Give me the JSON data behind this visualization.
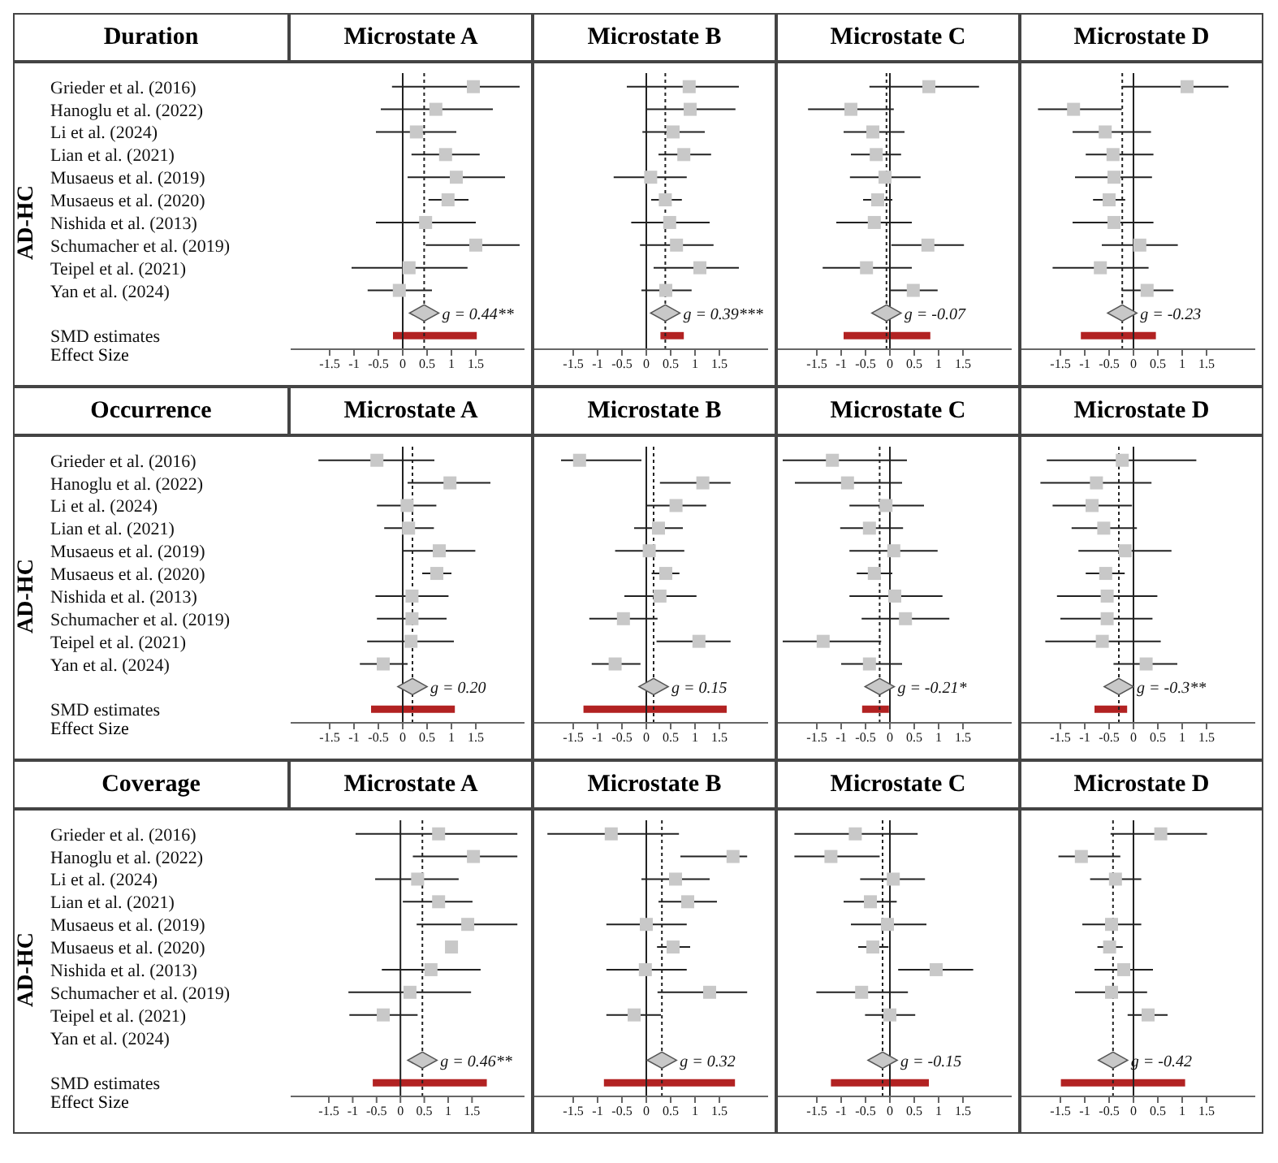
{
  "chart_data": [
    {
      "type": "scatter",
      "title": "Microstate A",
      "ylabel": "AD-HC",
      "xlabel": "Effect Size",
      "annotations": [
        "Duration",
        {
          "text": "g = 0.44**",
          "x": 0.44
        }
      ],
      "orientation": "horizontal",
      "categories": [
        "Grieder et al. (2016)",
        "Hanoglu et al. (2022)",
        "Li et al. (2024)",
        "Lian et al. (2021)",
        "Musaeus et al. (2019)",
        "Musaeus et al. (2020)",
        "Nishida et al. (2013)",
        "Schumacher et al. (2019)",
        "Teipel et al. (2021)",
        "Yan et al. (2024)",
        null,
        "SMD estimates"
      ],
      "xlim": [
        -2.3,
        2.5
      ],
      "xticks": [
        -1.5,
        -1,
        -0.5,
        0,
        0.5,
        1,
        1.5
      ],
      "series": [
        {
          "marker": "square",
          "color": "#c8c8c8",
          "values": [
            1.45,
            0.68,
            0.28,
            0.88,
            1.1,
            0.93,
            0.47,
            1.5,
            0.13,
            -0.07,
            null,
            null
          ],
          "errors": [
            [
              -0.22,
              2.4
            ],
            [
              -0.45,
              1.85
            ],
            [
              -0.55,
              1.1
            ],
            [
              0.18,
              1.58
            ],
            [
              0.1,
              2.1
            ],
            [
              0.53,
              1.35
            ],
            [
              -0.55,
              1.5
            ],
            [
              0.47,
              2.4
            ],
            [
              -1.05,
              1.33
            ],
            [
              -0.72,
              0.6
            ],
            null,
            null
          ]
        },
        {
          "type": "scatter",
          "marker": "diamond",
          "color": "#c8c8c8",
          "values": [
            null,
            null,
            null,
            null,
            null,
            null,
            null,
            null,
            null,
            null,
            0.44,
            null
          ]
        },
        {
          "type": "bar",
          "color": "#b22222",
          "values": [
            null,
            null,
            null,
            null,
            null,
            null,
            null,
            null,
            null,
            null,
            null,
            1.72
          ],
          "base": [
            null,
            null,
            null,
            null,
            null,
            null,
            null,
            null,
            null,
            null,
            null,
            -0.2
          ]
        }
      ],
      "ref_lines": [
        {
          "axis": "x",
          "value": 0,
          "line_style": "solid"
        },
        {
          "axis": "x",
          "value": 0.44,
          "line_style": "dotted"
        }
      ]
    },
    {
      "type": "scatter",
      "title": "Microstate B",
      "tick_labels": "x",
      "annotations": [
        {
          "text": "g = 0.39***",
          "x": 0.39
        }
      ],
      "orientation": "horizontal",
      "categories": [
        null,
        null,
        null,
        null,
        null,
        null,
        null,
        null,
        null,
        null,
        null,
        null
      ],
      "xlim": [
        -2.3,
        2.5
      ],
      "xticks": [
        -1.5,
        -1,
        -0.5,
        0,
        0.5,
        1,
        1.5
      ],
      "series": [
        {
          "marker": "square",
          "color": "#c8c8c8",
          "values": [
            0.88,
            0.9,
            0.55,
            0.77,
            0.09,
            0.39,
            0.48,
            0.62,
            1.1,
            0.4,
            null,
            null
          ],
          "errors": [
            [
              -0.4,
              1.9
            ],
            [
              0,
              1.83
            ],
            [
              -0.08,
              1.2
            ],
            [
              0.25,
              1.33
            ],
            [
              -0.67,
              0.83
            ],
            [
              0.1,
              0.73
            ],
            [
              -0.31,
              1.3
            ],
            [
              -0.13,
              1.38
            ],
            [
              0.15,
              1.9
            ],
            [
              -0.1,
              0.93
            ],
            null,
            null
          ]
        },
        {
          "type": "scatter",
          "marker": "diamond",
          "color": "#c8c8c8",
          "values": [
            null,
            null,
            null,
            null,
            null,
            null,
            null,
            null,
            null,
            null,
            0.39,
            null
          ]
        },
        {
          "type": "bar",
          "color": "#b22222",
          "values": [
            null,
            null,
            null,
            null,
            null,
            null,
            null,
            null,
            null,
            null,
            null,
            0.48
          ],
          "base": [
            null,
            null,
            null,
            null,
            null,
            null,
            null,
            null,
            null,
            null,
            null,
            0.29
          ]
        }
      ],
      "ref_lines": [
        {
          "axis": "x",
          "value": 0,
          "line_style": "solid"
        },
        {
          "axis": "x",
          "value": 0.39,
          "line_style": "dotted"
        }
      ]
    },
    {
      "type": "scatter",
      "title": "Microstate C",
      "tick_labels": "x",
      "annotations": [
        {
          "text": "g = -0.07",
          "x": -0.07
        }
      ],
      "orientation": "horizontal",
      "categories": [
        null,
        null,
        null,
        null,
        null,
        null,
        null,
        null,
        null,
        null,
        null,
        null
      ],
      "xlim": [
        -2.3,
        2.5
      ],
      "xticks": [
        -1.5,
        -1,
        -0.5,
        0,
        0.5,
        1,
        1.5
      ],
      "series": [
        {
          "marker": "square",
          "color": "#c8c8c8",
          "values": [
            0.8,
            -0.8,
            -0.35,
            -0.28,
            -0.1,
            -0.25,
            -0.32,
            0.78,
            -0.48,
            0.48,
            null,
            null
          ],
          "errors": [
            [
              -0.42,
              1.83
            ],
            [
              -1.68,
              0.08
            ],
            [
              -0.95,
              0.3
            ],
            [
              -0.8,
              0.23
            ],
            [
              -0.82,
              0.63
            ],
            [
              -0.55,
              0.05
            ],
            [
              -1.1,
              0.45
            ],
            [
              0.03,
              1.52
            ],
            [
              -1.38,
              0.45
            ],
            [
              0,
              0.98
            ],
            null,
            null
          ]
        },
        {
          "type": "scatter",
          "marker": "diamond",
          "color": "#c8c8c8",
          "values": [
            null,
            null,
            null,
            null,
            null,
            null,
            null,
            null,
            null,
            null,
            -0.07,
            null
          ]
        },
        {
          "type": "bar",
          "color": "#b22222",
          "values": [
            null,
            null,
            null,
            null,
            null,
            null,
            null,
            null,
            null,
            null,
            null,
            1.78
          ],
          "base": [
            null,
            null,
            null,
            null,
            null,
            null,
            null,
            null,
            null,
            null,
            null,
            -0.95
          ]
        }
      ],
      "ref_lines": [
        {
          "axis": "x",
          "value": 0,
          "line_style": "solid"
        },
        {
          "axis": "x",
          "value": -0.07,
          "line_style": "dotted"
        }
      ]
    },
    {
      "type": "scatter",
      "title": "Microstate D",
      "tick_labels": "x",
      "annotations": [
        {
          "text": "g = -0.23",
          "x": -0.23
        }
      ],
      "orientation": "horizontal",
      "categories": [
        null,
        null,
        null,
        null,
        null,
        null,
        null,
        null,
        null,
        null,
        null,
        null
      ],
      "xlim": [
        -2.3,
        2.5
      ],
      "xticks": [
        -1.5,
        -1,
        -0.5,
        0,
        0.5,
        1,
        1.5
      ],
      "series": [
        {
          "marker": "square",
          "color": "#c8c8c8",
          "values": [
            1.1,
            -1.23,
            -0.58,
            -0.42,
            -0.4,
            -0.5,
            -0.4,
            0.13,
            -0.68,
            0.28,
            null,
            null
          ],
          "errors": [
            [
              -0.24,
              1.95
            ],
            [
              -1.96,
              -0.24
            ],
            [
              -1.25,
              0.36
            ],
            [
              -0.98,
              0.41
            ],
            [
              -1.2,
              0.38
            ],
            [
              -0.83,
              -0.17
            ],
            [
              -1.25,
              0.41
            ],
            [
              -0.65,
              0.91
            ],
            [
              -1.66,
              0.31
            ],
            [
              -0.24,
              0.82
            ],
            null,
            null
          ]
        },
        {
          "type": "scatter",
          "marker": "diamond",
          "color": "#c8c8c8",
          "values": [
            null,
            null,
            null,
            null,
            null,
            null,
            null,
            null,
            null,
            null,
            -0.23,
            null
          ]
        },
        {
          "type": "bar",
          "color": "#b22222",
          "values": [
            null,
            null,
            null,
            null,
            null,
            null,
            null,
            null,
            null,
            null,
            null,
            1.54
          ],
          "base": [
            null,
            null,
            null,
            null,
            null,
            null,
            null,
            null,
            null,
            null,
            null,
            -1.08
          ]
        }
      ],
      "ref_lines": [
        {
          "axis": "x",
          "value": 0,
          "line_style": "solid"
        },
        {
          "axis": "x",
          "value": -0.23,
          "line_style": "dotted"
        }
      ]
    },
    {
      "type": "scatter",
      "title": "Microstate A",
      "ylabel": "AD-HC",
      "xlabel": "Effect Size",
      "annotations": [
        "Occurrence",
        {
          "text": "g = 0.20",
          "x": 0.2
        }
      ],
      "orientation": "horizontal",
      "categories": [
        "Grieder et al. (2016)",
        "Hanoglu et al. (2022)",
        "Li et al. (2024)",
        "Lian et al. (2021)",
        "Musaeus et al. (2019)",
        "Musaeus et al. (2020)",
        "Nishida et al. (2013)",
        "Schumacher et al. (2019)",
        "Teipel et al. (2021)",
        "Yan et al. (2024)",
        null,
        "SMD estimates"
      ],
      "xlim": [
        -2.3,
        2.5
      ],
      "xticks": [
        -1.5,
        -1,
        -0.5,
        0,
        0.5,
        1,
        1.5
      ],
      "series": [
        {
          "marker": "square",
          "color": "#c8c8c8",
          "values": [
            -0.53,
            0.97,
            0.09,
            0.12,
            0.75,
            0.7,
            0.19,
            0.19,
            0.17,
            -0.4,
            null,
            null
          ],
          "errors": [
            [
              -1.73,
              0.65
            ],
            [
              0.1,
              1.8
            ],
            [
              -0.53,
              0.69
            ],
            [
              -0.38,
              0.64
            ],
            [
              0,
              1.49
            ],
            [
              0.4,
              1.0
            ],
            [
              -0.56,
              0.94
            ],
            [
              -0.53,
              0.9
            ],
            [
              -0.73,
              1.05
            ],
            [
              -0.88,
              0.1
            ],
            null,
            null
          ]
        },
        {
          "type": "scatter",
          "marker": "diamond",
          "color": "#c8c8c8",
          "values": [
            null,
            null,
            null,
            null,
            null,
            null,
            null,
            null,
            null,
            null,
            0.2,
            null
          ]
        },
        {
          "type": "bar",
          "color": "#b22222",
          "values": [
            null,
            null,
            null,
            null,
            null,
            null,
            null,
            null,
            null,
            null,
            null,
            1.72
          ],
          "base": [
            null,
            null,
            null,
            null,
            null,
            null,
            null,
            null,
            null,
            null,
            null,
            -0.65
          ]
        }
      ],
      "ref_lines": [
        {
          "axis": "x",
          "value": 0,
          "line_style": "solid"
        },
        {
          "axis": "x",
          "value": 0.2,
          "line_style": "dotted"
        }
      ]
    },
    {
      "type": "scatter",
      "title": "Microstate B",
      "tick_labels": "x",
      "annotations": [
        {
          "text": "g = 0.15",
          "x": 0.15
        }
      ],
      "orientation": "horizontal",
      "categories": [
        null,
        null,
        null,
        null,
        null,
        null,
        null,
        null,
        null,
        null,
        null,
        null
      ],
      "xlim": [
        -2.3,
        2.5
      ],
      "xticks": [
        -1.5,
        -1,
        -0.5,
        0,
        0.5,
        1,
        1.5
      ],
      "series": [
        {
          "marker": "square",
          "color": "#c8c8c8",
          "values": [
            -1.37,
            1.16,
            0.61,
            0.25,
            0.06,
            0.4,
            0.28,
            -0.47,
            1.08,
            -0.64,
            null,
            null
          ],
          "errors": [
            [
              -1.75,
              -0.1
            ],
            [
              0.28,
              1.73
            ],
            [
              0,
              1.23
            ],
            [
              -0.25,
              0.75
            ],
            [
              -0.64,
              0.78
            ],
            [
              0.11,
              0.68
            ],
            [
              -0.45,
              1.03
            ],
            [
              -1.17,
              0.23
            ],
            [
              0.21,
              1.73
            ],
            [
              -1.12,
              -0.12
            ],
            null,
            null
          ]
        },
        {
          "type": "scatter",
          "marker": "diamond",
          "color": "#c8c8c8",
          "values": [
            null,
            null,
            null,
            null,
            null,
            null,
            null,
            null,
            null,
            null,
            0.15,
            null
          ]
        },
        {
          "type": "bar",
          "color": "#b22222",
          "values": [
            null,
            null,
            null,
            null,
            null,
            null,
            null,
            null,
            null,
            null,
            null,
            2.94
          ],
          "base": [
            null,
            null,
            null,
            null,
            null,
            null,
            null,
            null,
            null,
            null,
            null,
            -1.29
          ]
        }
      ],
      "ref_lines": [
        {
          "axis": "x",
          "value": 0,
          "line_style": "solid"
        },
        {
          "axis": "x",
          "value": 0.15,
          "line_style": "dotted"
        }
      ]
    },
    {
      "type": "scatter",
      "title": "Microstate C",
      "tick_labels": "x",
      "annotations": [
        {
          "text": "g = -0.21*",
          "x": -0.21
        }
      ],
      "orientation": "horizontal",
      "categories": [
        null,
        null,
        null,
        null,
        null,
        null,
        null,
        null,
        null,
        null,
        null,
        null
      ],
      "xlim": [
        -2.3,
        2.5
      ],
      "xticks": [
        -1.5,
        -1,
        -0.5,
        0,
        0.5,
        1,
        1.5
      ],
      "series": [
        {
          "marker": "square",
          "color": "#c8c8c8",
          "values": [
            -1.18,
            -0.87,
            -0.08,
            -0.42,
            0.08,
            -0.32,
            0.1,
            0.32,
            -1.37,
            -0.42,
            null,
            null
          ],
          "errors": [
            [
              -2.2,
              0.35
            ],
            [
              -1.95,
              0.25
            ],
            [
              -0.83,
              0.7
            ],
            [
              -1.02,
              0.27
            ],
            [
              -0.83,
              0.98
            ],
            [
              -0.68,
              0.05
            ],
            [
              -0.83,
              1.08
            ],
            [
              -0.58,
              1.22
            ],
            [
              -2.2,
              -0.18
            ],
            [
              -1.0,
              0.25
            ],
            null,
            null
          ]
        },
        {
          "type": "scatter",
          "marker": "diamond",
          "color": "#c8c8c8",
          "values": [
            null,
            null,
            null,
            null,
            null,
            null,
            null,
            null,
            null,
            null,
            -0.21,
            null
          ]
        },
        {
          "type": "bar",
          "color": "#b22222",
          "values": [
            null,
            null,
            null,
            null,
            null,
            null,
            null,
            null,
            null,
            null,
            null,
            0.55
          ],
          "base": [
            null,
            null,
            null,
            null,
            null,
            null,
            null,
            null,
            null,
            null,
            null,
            -0.57
          ]
        }
      ],
      "ref_lines": [
        {
          "axis": "x",
          "value": 0,
          "line_style": "solid"
        },
        {
          "axis": "x",
          "value": -0.21,
          "line_style": "dotted"
        }
      ]
    },
    {
      "type": "scatter",
      "title": "Microstate D",
      "tick_labels": "x",
      "annotations": [
        {
          "text": "g = -0.3**",
          "x": -0.3
        }
      ],
      "orientation": "horizontal",
      "categories": [
        null,
        null,
        null,
        null,
        null,
        null,
        null,
        null,
        null,
        null,
        null,
        null
      ],
      "xlim": [
        -2.3,
        2.5
      ],
      "xticks": [
        -1.5,
        -1,
        -0.5,
        0,
        0.5,
        1,
        1.5
      ],
      "series": [
        {
          "marker": "square",
          "color": "#c8c8c8",
          "values": [
            -0.23,
            -0.76,
            -0.85,
            -0.61,
            -0.17,
            -0.57,
            -0.54,
            -0.54,
            -0.64,
            0.26,
            null,
            null
          ],
          "errors": [
            [
              -1.78,
              1.29
            ],
            [
              -1.91,
              0.37
            ],
            [
              -1.66,
              -0.03
            ],
            [
              -1.27,
              0.07
            ],
            [
              -1.13,
              0.78
            ],
            [
              -0.98,
              -0.18
            ],
            [
              -1.57,
              0.49
            ],
            [
              -1.5,
              0.39
            ],
            [
              -1.81,
              0.56
            ],
            [
              -0.41,
              0.9
            ],
            null,
            null
          ]
        },
        {
          "type": "scatter",
          "marker": "diamond",
          "color": "#c8c8c8",
          "values": [
            null,
            null,
            null,
            null,
            null,
            null,
            null,
            null,
            null,
            null,
            -0.3,
            null
          ]
        },
        {
          "type": "bar",
          "color": "#b22222",
          "values": [
            null,
            null,
            null,
            null,
            null,
            null,
            null,
            null,
            null,
            null,
            null,
            0.67
          ],
          "base": [
            null,
            null,
            null,
            null,
            null,
            null,
            null,
            null,
            null,
            null,
            null,
            -0.8
          ]
        }
      ],
      "ref_lines": [
        {
          "axis": "x",
          "value": 0,
          "line_style": "solid"
        },
        {
          "axis": "x",
          "value": -0.3,
          "line_style": "dotted"
        }
      ]
    },
    {
      "type": "scatter",
      "title": "Microstate A",
      "ylabel": "AD-HC",
      "xlabel": "Effect Size",
      "annotations": [
        "Coverage",
        {
          "text": "g = 0.46**",
          "x": 0.46
        }
      ],
      "orientation": "horizontal",
      "categories": [
        "Grieder et al. (2016)",
        "Hanoglu et al. (2022)",
        "Li et al. (2024)",
        "Lian et al. (2021)",
        "Musaeus et al. (2019)",
        "Musaeus et al. (2020)",
        "Nishida et al. (2013)",
        "Schumacher et al. (2019)",
        "Teipel et al. (2021)",
        "Yan et al. (2024)",
        null,
        "SMD estimates"
      ],
      "xlim": [
        -2.3,
        2.6
      ],
      "xticks": [
        -1.5,
        -1,
        -0.5,
        0,
        0.5,
        1,
        1.5
      ],
      "series": [
        {
          "marker": "square",
          "color": "#c8c8c8",
          "values": [
            0.8,
            1.53,
            0.36,
            0.8,
            1.41,
            1.07,
            0.64,
            0.2,
            -0.36,
            null,
            null,
            null
          ],
          "errors": [
            [
              -0.94,
              2.45
            ],
            [
              0.26,
              2.45
            ],
            [
              -0.53,
              1.22
            ],
            [
              0.05,
              1.51
            ],
            [
              0.34,
              2.45
            ],
            null,
            [
              -0.39,
              1.68
            ],
            [
              -1.09,
              1.48
            ],
            [
              -1.07,
              0.36
            ],
            null,
            null,
            null
          ]
        },
        {
          "type": "scatter",
          "marker": "diamond",
          "color": "#c8c8c8",
          "values": [
            null,
            null,
            null,
            null,
            null,
            null,
            null,
            null,
            null,
            null,
            0.46,
            null
          ]
        },
        {
          "type": "bar",
          "color": "#b22222",
          "values": [
            null,
            null,
            null,
            null,
            null,
            null,
            null,
            null,
            null,
            null,
            null,
            2.39
          ],
          "base": [
            null,
            null,
            null,
            null,
            null,
            null,
            null,
            null,
            null,
            null,
            null,
            -0.58
          ]
        }
      ],
      "ref_lines": [
        {
          "axis": "x",
          "value": 0,
          "line_style": "solid"
        },
        {
          "axis": "x",
          "value": 0.46,
          "line_style": "dotted"
        }
      ]
    },
    {
      "type": "scatter",
      "title": "Microstate B",
      "tick_labels": "x",
      "annotations": [
        {
          "text": "g = 0.32",
          "x": 0.32
        }
      ],
      "orientation": "horizontal",
      "categories": [
        null,
        null,
        null,
        null,
        null,
        null,
        null,
        null,
        null,
        null,
        null,
        null
      ],
      "xlim": [
        -2.3,
        2.5
      ],
      "xticks": [
        -1.5,
        -1,
        -0.5,
        0,
        0.5,
        1,
        1.5
      ],
      "series": [
        {
          "marker": "square",
          "color": "#c8c8c8",
          "values": [
            -0.72,
            1.78,
            0.6,
            0.85,
            0,
            0.55,
            -0.02,
            1.3,
            -0.25,
            null,
            null,
            null
          ],
          "errors": [
            [
              -2.03,
              0.67
            ],
            [
              0.7,
              2.07
            ],
            [
              -0.1,
              1.3
            ],
            [
              0.25,
              1.45
            ],
            [
              -0.82,
              0.83
            ],
            [
              0.22,
              0.9
            ],
            [
              -0.82,
              0.83
            ],
            [
              0.23,
              2.07
            ],
            [
              -0.82,
              0.3
            ],
            null,
            null,
            null
          ]
        },
        {
          "type": "scatter",
          "marker": "diamond",
          "color": "#c8c8c8",
          "values": [
            null,
            null,
            null,
            null,
            null,
            null,
            null,
            null,
            null,
            null,
            0.32,
            null
          ]
        },
        {
          "type": "bar",
          "color": "#b22222",
          "values": [
            null,
            null,
            null,
            null,
            null,
            null,
            null,
            null,
            null,
            null,
            null,
            2.69
          ],
          "base": [
            null,
            null,
            null,
            null,
            null,
            null,
            null,
            null,
            null,
            null,
            null,
            -0.87
          ]
        }
      ],
      "ref_lines": [
        {
          "axis": "x",
          "value": 0,
          "line_style": "solid"
        },
        {
          "axis": "x",
          "value": 0.32,
          "line_style": "dotted"
        }
      ]
    },
    {
      "type": "scatter",
      "title": "Microstate C",
      "tick_labels": "x",
      "annotations": [
        {
          "text": "g = -0.15",
          "x": -0.15
        }
      ],
      "orientation": "horizontal",
      "categories": [
        null,
        null,
        null,
        null,
        null,
        null,
        null,
        null,
        null,
        null,
        null,
        null
      ],
      "xlim": [
        -2.3,
        2.5
      ],
      "xticks": [
        -1.5,
        -1,
        -0.5,
        0,
        0.5,
        1,
        1.5
      ],
      "series": [
        {
          "marker": "square",
          "color": "#c8c8c8",
          "values": [
            -0.71,
            -1.21,
            0.07,
            -0.4,
            -0.05,
            -0.35,
            0.95,
            -0.58,
            0,
            null,
            null,
            null
          ],
          "errors": [
            [
              -1.96,
              0.57
            ],
            [
              -1.96,
              -0.21
            ],
            [
              -0.61,
              0.72
            ],
            [
              -0.95,
              0.14
            ],
            [
              -0.8,
              0.75
            ],
            [
              -0.65,
              -0.03
            ],
            [
              0.17,
              1.71
            ],
            [
              -1.51,
              0.37
            ],
            [
              -0.51,
              0.52
            ],
            null,
            null,
            null
          ]
        },
        {
          "type": "scatter",
          "marker": "diamond",
          "color": "#c8c8c8",
          "values": [
            null,
            null,
            null,
            null,
            null,
            null,
            null,
            null,
            null,
            null,
            -0.15,
            null
          ]
        },
        {
          "type": "bar",
          "color": "#b22222",
          "values": [
            null,
            null,
            null,
            null,
            null,
            null,
            null,
            null,
            null,
            null,
            null,
            2.01
          ],
          "base": [
            null,
            null,
            null,
            null,
            null,
            null,
            null,
            null,
            null,
            null,
            null,
            -1.21
          ]
        }
      ],
      "ref_lines": [
        {
          "axis": "x",
          "value": 0,
          "line_style": "solid"
        },
        {
          "axis": "x",
          "value": -0.15,
          "line_style": "dotted"
        }
      ]
    },
    {
      "type": "scatter",
      "title": "Microstate D",
      "tick_labels": "x",
      "annotations": [
        {
          "text": "g = -0.42",
          "x": -0.42
        }
      ],
      "orientation": "horizontal",
      "categories": [
        null,
        null,
        null,
        null,
        null,
        null,
        null,
        null,
        null,
        null,
        null,
        null
      ],
      "xlim": [
        -2.3,
        2.5
      ],
      "xticks": [
        -1.5,
        -1,
        -0.5,
        0,
        0.5,
        1,
        1.5
      ],
      "series": [
        {
          "marker": "square",
          "color": "#c8c8c8",
          "values": [
            0.56,
            -1.07,
            -0.37,
            null,
            -0.45,
            -0.49,
            -0.2,
            -0.45,
            0.3,
            null,
            null,
            null
          ],
          "errors": [
            [
              -0.47,
              1.51
            ],
            [
              -1.54,
              -0.27
            ],
            [
              -0.89,
              0.16
            ],
            null,
            [
              -1.05,
              0.16
            ],
            [
              -0.74,
              -0.22
            ],
            [
              -0.8,
              0.4
            ],
            [
              -1.2,
              0.28
            ],
            [
              -0.12,
              0.7
            ],
            null,
            null,
            null
          ]
        },
        {
          "type": "scatter",
          "marker": "diamond",
          "color": "#c8c8c8",
          "values": [
            null,
            null,
            null,
            null,
            null,
            null,
            null,
            null,
            null,
            null,
            -0.42,
            null
          ]
        },
        {
          "type": "bar",
          "color": "#b22222",
          "values": [
            null,
            null,
            null,
            null,
            null,
            null,
            null,
            null,
            null,
            null,
            null,
            2.55
          ],
          "base": [
            null,
            null,
            null,
            null,
            null,
            null,
            null,
            null,
            null,
            null,
            null,
            -1.49
          ]
        }
      ],
      "ref_lines": [
        {
          "axis": "x",
          "value": 0,
          "line_style": "solid"
        },
        {
          "axis": "x",
          "value": -0.42,
          "line_style": "dotted"
        }
      ]
    }
  ]
}
